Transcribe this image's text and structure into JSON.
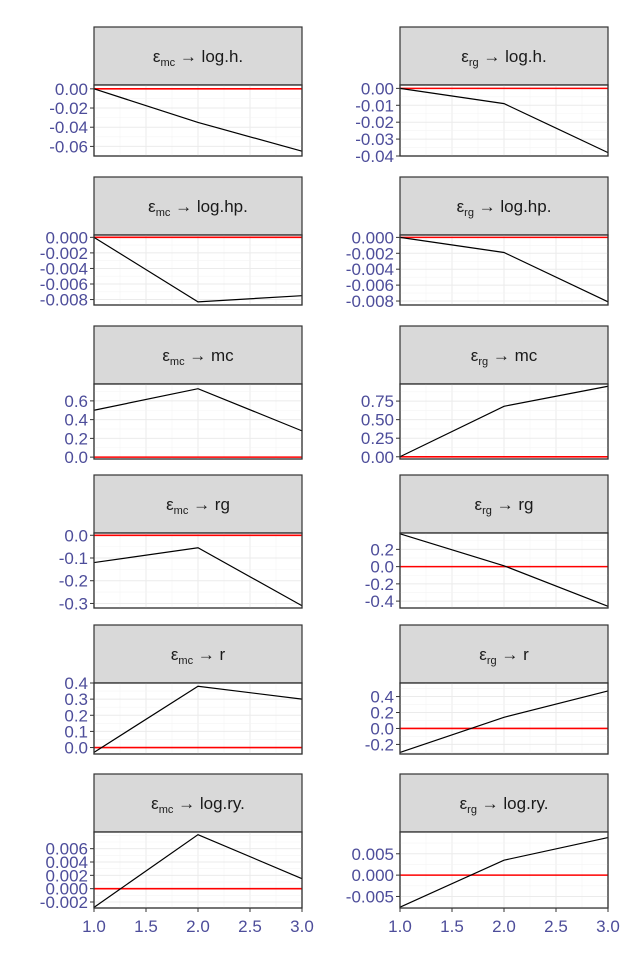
{
  "chart_data": {
    "type": "line",
    "layout": "faceted grid, 6 rows x 2 columns",
    "x_ticks": [
      "1.0",
      "1.5",
      "2.0",
      "2.5",
      "3.0"
    ],
    "xlim": [
      1,
      3
    ],
    "reference_line": {
      "y": 0,
      "color": "#ff0000"
    },
    "line_color": "#000000",
    "strip_color": "#d9d9d9",
    "panels": [
      {
        "shock": "mc",
        "response": "log.h.",
        "x": [
          1,
          2,
          3
        ],
        "y": [
          0.0,
          -0.035,
          -0.065
        ],
        "ylim": [
          -0.07,
          0.004
        ],
        "yticks": [
          "0.00",
          "-0.02",
          "-0.04",
          "-0.06"
        ],
        "ytick_values": [
          0,
          -0.02,
          -0.04,
          -0.06
        ]
      },
      {
        "shock": "rg",
        "response": "log.h.",
        "x": [
          1,
          2,
          3
        ],
        "y": [
          0.0,
          -0.009,
          -0.038
        ],
        "ylim": [
          -0.04,
          0.002
        ],
        "yticks": [
          "0.00",
          "-0.01",
          "-0.02",
          "-0.03",
          "-0.04"
        ],
        "ytick_values": [
          0,
          -0.01,
          -0.02,
          -0.03,
          -0.04
        ]
      },
      {
        "shock": "mc",
        "response": "log.hp.",
        "x": [
          1,
          2,
          3
        ],
        "y": [
          0.0,
          -0.0083,
          -0.0075
        ],
        "ylim": [
          -0.0087,
          0.0003
        ],
        "yticks": [
          "0.000",
          "-0.002",
          "-0.004",
          "-0.006",
          "-0.008"
        ],
        "ytick_values": [
          0,
          -0.002,
          -0.004,
          -0.006,
          -0.008
        ]
      },
      {
        "shock": "rg",
        "response": "log.hp.",
        "x": [
          1,
          2,
          3
        ],
        "y": [
          0.0,
          -0.0019,
          -0.0081
        ],
        "ylim": [
          -0.0085,
          0.0003
        ],
        "yticks": [
          "0.000",
          "-0.002",
          "-0.004",
          "-0.006",
          "-0.008"
        ],
        "ytick_values": [
          0,
          -0.002,
          -0.004,
          -0.006,
          -0.008
        ]
      },
      {
        "shock": "mc",
        "response": "mc",
        "x": [
          1,
          2,
          3
        ],
        "y": [
          0.5,
          0.73,
          0.28
        ],
        "ylim": [
          -0.02,
          0.78
        ],
        "yticks": [
          "0.6",
          "0.4",
          "0.2",
          "0.0"
        ],
        "ytick_values": [
          0.6,
          0.4,
          0.2,
          0.0
        ]
      },
      {
        "shock": "rg",
        "response": "mc",
        "x": [
          1,
          2,
          3
        ],
        "y": [
          0.0,
          0.68,
          0.95
        ],
        "ylim": [
          -0.03,
          0.98
        ],
        "yticks": [
          "0.75",
          "0.50",
          "0.25",
          "0.00"
        ],
        "ytick_values": [
          0.75,
          0.5,
          0.25,
          0.0
        ]
      },
      {
        "shock": "mc",
        "response": "rg",
        "x": [
          1,
          2,
          3
        ],
        "y": [
          -0.12,
          -0.055,
          -0.31
        ],
        "ylim": [
          -0.32,
          0.01
        ],
        "yticks": [
          "0.0",
          "-0.1",
          "-0.2",
          "-0.3"
        ],
        "ytick_values": [
          0.0,
          -0.1,
          -0.2,
          -0.3
        ]
      },
      {
        "shock": "rg",
        "response": "rg",
        "x": [
          1,
          2,
          3
        ],
        "y": [
          0.38,
          0.01,
          -0.46
        ],
        "ylim": [
          -0.48,
          0.39
        ],
        "yticks": [
          "0.2",
          "0.0",
          "-0.2",
          "-0.4"
        ],
        "ytick_values": [
          0.2,
          0.0,
          -0.2,
          -0.4
        ]
      },
      {
        "shock": "mc",
        "response": "r",
        "x": [
          1,
          2,
          3
        ],
        "y": [
          -0.03,
          0.38,
          0.3
        ],
        "ylim": [
          -0.04,
          0.4
        ],
        "yticks": [
          "0.4",
          "0.3",
          "0.2",
          "0.1",
          "0.0"
        ],
        "ytick_values": [
          0.4,
          0.3,
          0.2,
          0.1,
          0.0
        ]
      },
      {
        "shock": "rg",
        "response": "r",
        "x": [
          1,
          2,
          3
        ],
        "y": [
          -0.3,
          0.14,
          0.47
        ],
        "ylim": [
          -0.32,
          0.57
        ],
        "yticks": [
          "0.4",
          "0.2",
          "0.0",
          "-0.2"
        ],
        "ytick_values": [
          0.4,
          0.2,
          0.0,
          -0.2
        ]
      },
      {
        "shock": "mc",
        "response": "log.ry.",
        "x": [
          1,
          2,
          3
        ],
        "y": [
          -0.0028,
          0.0081,
          0.0015
        ],
        "ylim": [
          -0.0029,
          0.0085
        ],
        "yticks": [
          "0.006",
          "0.004",
          "0.002",
          "0.000",
          "-0.002"
        ],
        "ytick_values": [
          0.006,
          0.004,
          0.002,
          0.0,
          -0.002
        ]
      },
      {
        "shock": "rg",
        "response": "log.ry.",
        "x": [
          1,
          2,
          3
        ],
        "y": [
          -0.0075,
          0.0035,
          0.0088
        ],
        "ylim": [
          -0.0077,
          0.0101
        ],
        "yticks": [
          "0.005",
          "0.000",
          "-0.005"
        ],
        "ytick_values": [
          0.005,
          0.0,
          -0.005
        ]
      }
    ]
  }
}
